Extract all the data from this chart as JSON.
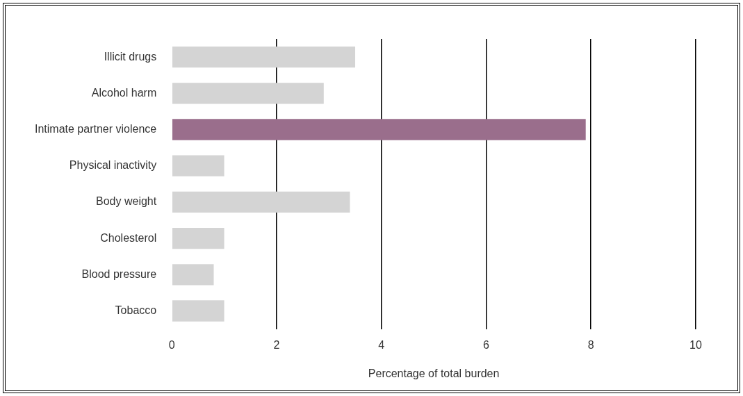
{
  "chart_data": {
    "type": "bar",
    "orientation": "horizontal",
    "categories": [
      "Illicit drugs",
      "Alcohol harm",
      "Intimate partner violence",
      "Physical inactivity",
      "Body weight",
      "Cholesterol",
      "Blood pressure",
      "Tobacco"
    ],
    "values": [
      3.5,
      2.9,
      7.9,
      1.0,
      3.4,
      1.0,
      0.8,
      1.0
    ],
    "colors": [
      "#d4d4d4",
      "#d4d4d4",
      "#9a6e8c",
      "#d4d4d4",
      "#d4d4d4",
      "#d4d4d4",
      "#d4d4d4",
      "#d4d4d4"
    ],
    "xlabel": "Percentage of total burden",
    "xlim": [
      0,
      10
    ],
    "xticks": [
      0,
      2,
      4,
      6,
      8,
      10
    ],
    "grid": "x",
    "legend": false
  }
}
